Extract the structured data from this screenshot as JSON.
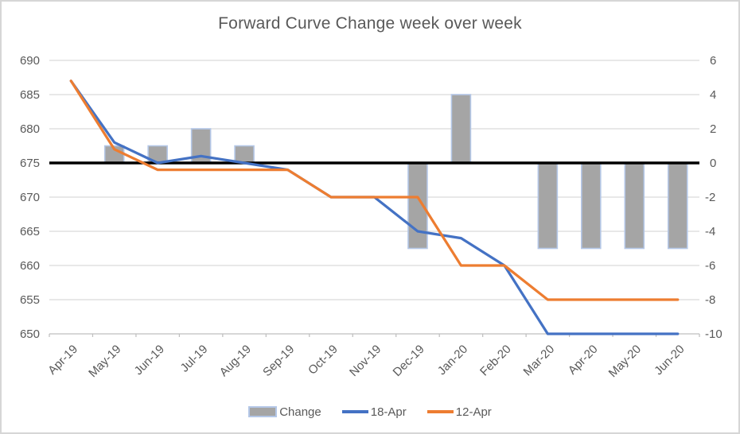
{
  "chart_data": {
    "type": "bar",
    "subtype": "combo-bar-line-two-axes",
    "title": "Forward Curve Change week over week",
    "categories": [
      "Apr-19",
      "May-19",
      "Jun-19",
      "Jul-19",
      "Aug-19",
      "Sep-19",
      "Oct-19",
      "Nov-19",
      "Dec-19",
      "Jan-20",
      "Feb-20",
      "Mar-20",
      "Apr-20",
      "May-20",
      "Jun-20"
    ],
    "series": [
      {
        "name": "Change",
        "type": "bar",
        "axis": "right",
        "fill_color": "#a5a5a5",
        "border_color": "#b4c7e7",
        "values": [
          0,
          1,
          1,
          2,
          1,
          0,
          0,
          0,
          -5,
          4,
          0,
          -5,
          -5,
          -5,
          -5
        ]
      },
      {
        "name": "18-Apr",
        "type": "line",
        "axis": "left",
        "color": "#4472c4",
        "values": [
          687,
          678,
          675,
          676,
          675,
          674,
          670,
          670,
          665,
          664,
          660,
          650,
          650,
          650,
          650
        ]
      },
      {
        "name": "12-Apr",
        "type": "line",
        "axis": "left",
        "color": "#ed7d31",
        "values": [
          687,
          677,
          674,
          674,
          674,
          674,
          670,
          670,
          670,
          660,
          660,
          655,
          655,
          655,
          655
        ]
      }
    ],
    "left_axis": {
      "min": 650,
      "max": 690,
      "ticks": [
        690,
        685,
        680,
        675,
        670,
        665,
        660,
        655,
        650
      ]
    },
    "right_axis": {
      "min": -10,
      "max": 6,
      "ticks": [
        6,
        4,
        2,
        0,
        -2,
        -4,
        -6,
        -8,
        -10
      ]
    },
    "zero_line": {
      "value_right": 0,
      "value_left": 675,
      "color": "#000000"
    },
    "grid": "on",
    "gridline_color": "#d9d9d9",
    "axis_line_color": "#bfbfbf",
    "text_color": "#595959",
    "legend_position": "bottom",
    "xlabel": "",
    "ylabel": ""
  },
  "legend": {
    "change_label": "Change",
    "line1_label": "18-Apr",
    "line2_label": "12-Apr"
  }
}
